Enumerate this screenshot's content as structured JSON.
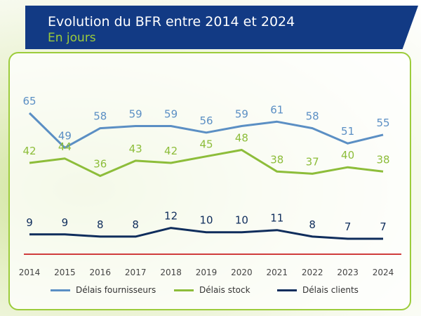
{
  "header": {
    "title": "Evolution du BFR entre 2014 et 2024",
    "subtitle": "En jours"
  },
  "colors": {
    "fournisseurs": "#5b8fc4",
    "stock": "#8dbd3a",
    "clients": "#0f2d5c",
    "baseline": "#d03c3c"
  },
  "chart_data": {
    "type": "line",
    "title": "Evolution du BFR entre 2014 et 2024",
    "subtitle": "En jours",
    "categories": [
      "2014",
      "2015",
      "2016",
      "2017",
      "2018",
      "2019",
      "2020",
      "2021",
      "2022",
      "2023",
      "2024"
    ],
    "series": [
      {
        "name": "Délais fournisseurs",
        "values": [
          65,
          49,
          58,
          59,
          59,
          56,
          59,
          61,
          58,
          51,
          55
        ]
      },
      {
        "name": "Délais stock",
        "values": [
          42,
          44,
          36,
          43,
          42,
          45,
          48,
          38,
          37,
          40,
          38
        ]
      },
      {
        "name": "Délais clients",
        "values": [
          9,
          9,
          8,
          8,
          12,
          10,
          10,
          11,
          8,
          7,
          7
        ]
      }
    ],
    "legend_position": "bottom",
    "grid": false
  }
}
